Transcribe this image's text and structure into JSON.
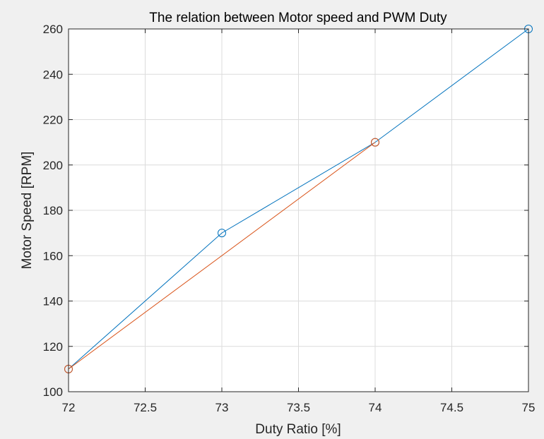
{
  "chart_data": {
    "type": "line",
    "title": "The relation between Motor speed and PWM Duty",
    "xlabel": "Duty Ratio [%]",
    "ylabel": "Motor Speed [RPM]",
    "xlim": [
      72,
      75
    ],
    "ylim": [
      100,
      260
    ],
    "grid": true,
    "xticks": [
      "72",
      "72.5",
      "73",
      "73.5",
      "74",
      "74.5",
      "75"
    ],
    "yticks": [
      "100",
      "120",
      "140",
      "160",
      "180",
      "200",
      "220",
      "240",
      "260"
    ],
    "series": [
      {
        "color": "#0072BD",
        "marker": "circle",
        "x": [
          72,
          73,
          74,
          75
        ],
        "y": [
          110,
          170,
          210,
          260
        ]
      },
      {
        "color": "#D95319",
        "marker": "circle",
        "x": [
          72,
          74
        ],
        "y": [
          110,
          210
        ]
      }
    ]
  }
}
